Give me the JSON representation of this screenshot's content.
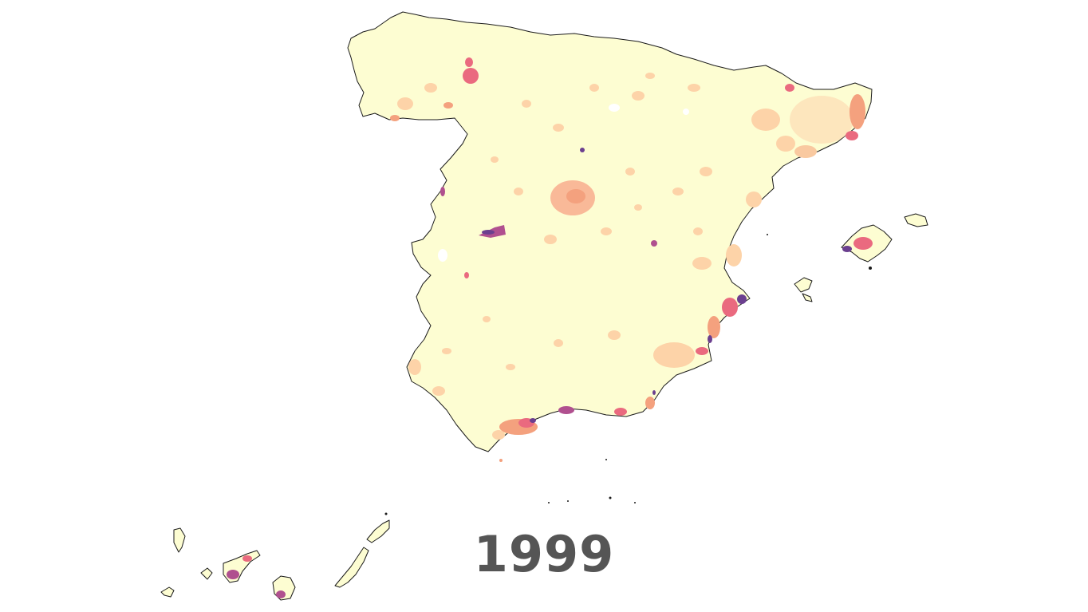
{
  "map": {
    "year": "1999",
    "colors": {
      "background": "#ffffff",
      "land_base": "#fdfdd2",
      "border": "#1a1a1a",
      "low": "#fdd3a8",
      "medium": "#f4a17e",
      "high": "#ea6a7f",
      "very_high": "#b0508f",
      "max": "#6b3f8f",
      "year_text": "#555555"
    }
  }
}
